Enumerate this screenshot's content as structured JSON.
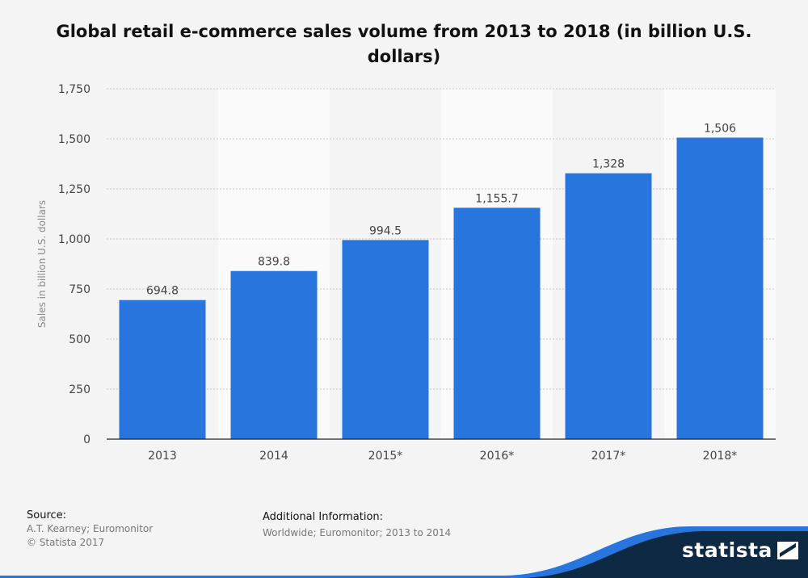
{
  "title": "Global retail e-commerce sales volume from 2013 to 2018 (in billion U.S. dollars)",
  "chart_data": {
    "type": "bar",
    "title": "Global retail e-commerce sales volume from 2013 to 2018 (in billion U.S. dollars)",
    "xlabel": "",
    "ylabel": "Sales in billion U.S. dollars",
    "categories": [
      "2013",
      "2014",
      "2015*",
      "2016*",
      "2017*",
      "2018*"
    ],
    "values": [
      694.8,
      839.8,
      994.5,
      1155.7,
      1328,
      1506
    ],
    "value_labels": [
      "694.8",
      "839.8",
      "994.5",
      "1,155.7",
      "1,328",
      "1,506"
    ],
    "ylim": [
      0,
      1750
    ],
    "yticks": [
      0,
      250,
      500,
      750,
      1000,
      1250,
      1500,
      1750
    ],
    "ytick_labels": [
      "0",
      "250",
      "500",
      "750",
      "1,000",
      "1,250",
      "1,500",
      "1,750"
    ],
    "grid": true,
    "bar_color": "#2876dd"
  },
  "footer": {
    "source_heading": "Source:",
    "source_line1": "A.T. Kearney; Euromonitor",
    "source_line2": "© Statista 2017",
    "info_heading": "Additional Information:",
    "info_text": "Worldwide; Euromonitor; 2013 to 2014"
  },
  "brand": {
    "name": "statista",
    "accent": "#2876dd",
    "dark": "#0d2944"
  }
}
